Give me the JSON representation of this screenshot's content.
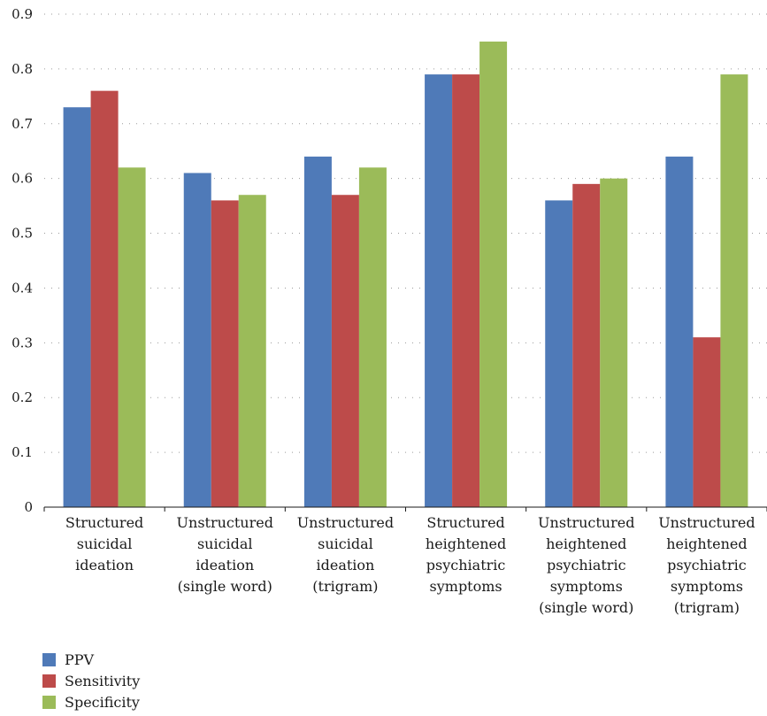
{
  "chart_data": {
    "type": "bar",
    "title": "",
    "xlabel": "",
    "ylabel": "",
    "ylim": [
      0,
      0.9
    ],
    "yticks": [
      0,
      0.1,
      0.2,
      0.3,
      0.4,
      0.5,
      0.6,
      0.7,
      0.8,
      0.9
    ],
    "ytick_labels": [
      "0",
      "0.1",
      "0.2",
      "0.3",
      "0.4",
      "0.5",
      "0.6",
      "0.7",
      "0.8",
      "0.9"
    ],
    "grid": "horizontal-dotted",
    "legend_position": "bottom-left",
    "categories": [
      [
        "Structured",
        "suicidal",
        "ideation"
      ],
      [
        "Unstructured",
        "suicidal",
        "ideation",
        "(single word)"
      ],
      [
        "Unstructured",
        "suicidal",
        "ideation",
        "(trigram)"
      ],
      [
        "Structured",
        "heightened",
        "psychiatric",
        "symptoms"
      ],
      [
        "Unstructured",
        "heightened",
        "psychiatric",
        "symptoms",
        "(single word)"
      ],
      [
        "Unstructured",
        "heightened",
        "psychiatric",
        "symptoms",
        "(trigram)"
      ]
    ],
    "series": [
      {
        "name": "PPV",
        "color": "#4f7ab8",
        "values": [
          0.73,
          0.61,
          0.64,
          0.79,
          0.56,
          0.64
        ]
      },
      {
        "name": "Sensitivity",
        "color": "#bd4b4a",
        "values": [
          0.76,
          0.56,
          0.57,
          0.79,
          0.59,
          0.31
        ]
      },
      {
        "name": "Specificity",
        "color": "#9bbb59",
        "values": [
          0.62,
          0.57,
          0.62,
          0.85,
          0.6,
          0.79
        ]
      }
    ]
  }
}
